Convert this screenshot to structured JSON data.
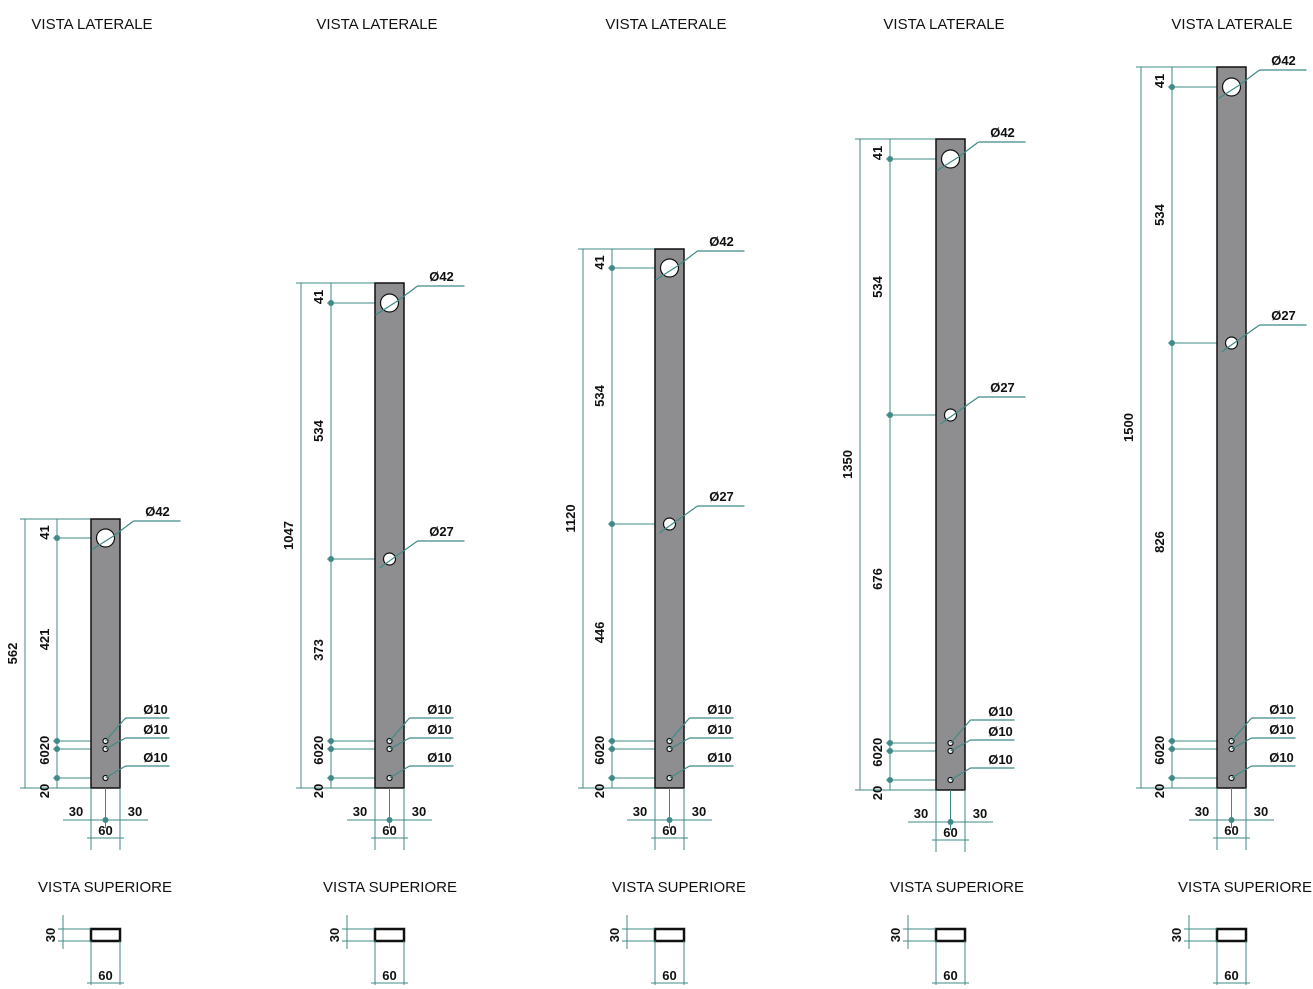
{
  "labels": {
    "side_view": "VISTA LATERALE",
    "top_view": "VISTA SUPERIORE",
    "hole_42": "Ø42",
    "hole_27": "Ø27",
    "hole_10": "Ø10"
  },
  "common": {
    "width": "60",
    "half_width": "30",
    "thickness": "30",
    "top_offset": "41",
    "bottom_20a": "20",
    "bottom_60": "60",
    "bottom_20b": "20"
  },
  "posts": [
    {
      "total": "562",
      "upper_gap": "",
      "lower_gap": "421",
      "has_27": false
    },
    {
      "total": "1047",
      "upper_gap": "534",
      "lower_gap": "373",
      "has_27": true
    },
    {
      "total": "1120",
      "upper_gap": "534",
      "lower_gap": "446",
      "has_27": true
    },
    {
      "total": "1350",
      "upper_gap": "534",
      "lower_gap": "676",
      "has_27": true
    },
    {
      "total": "1500",
      "upper_gap": "534",
      "lower_gap": "826",
      "has_27": true
    }
  ]
}
